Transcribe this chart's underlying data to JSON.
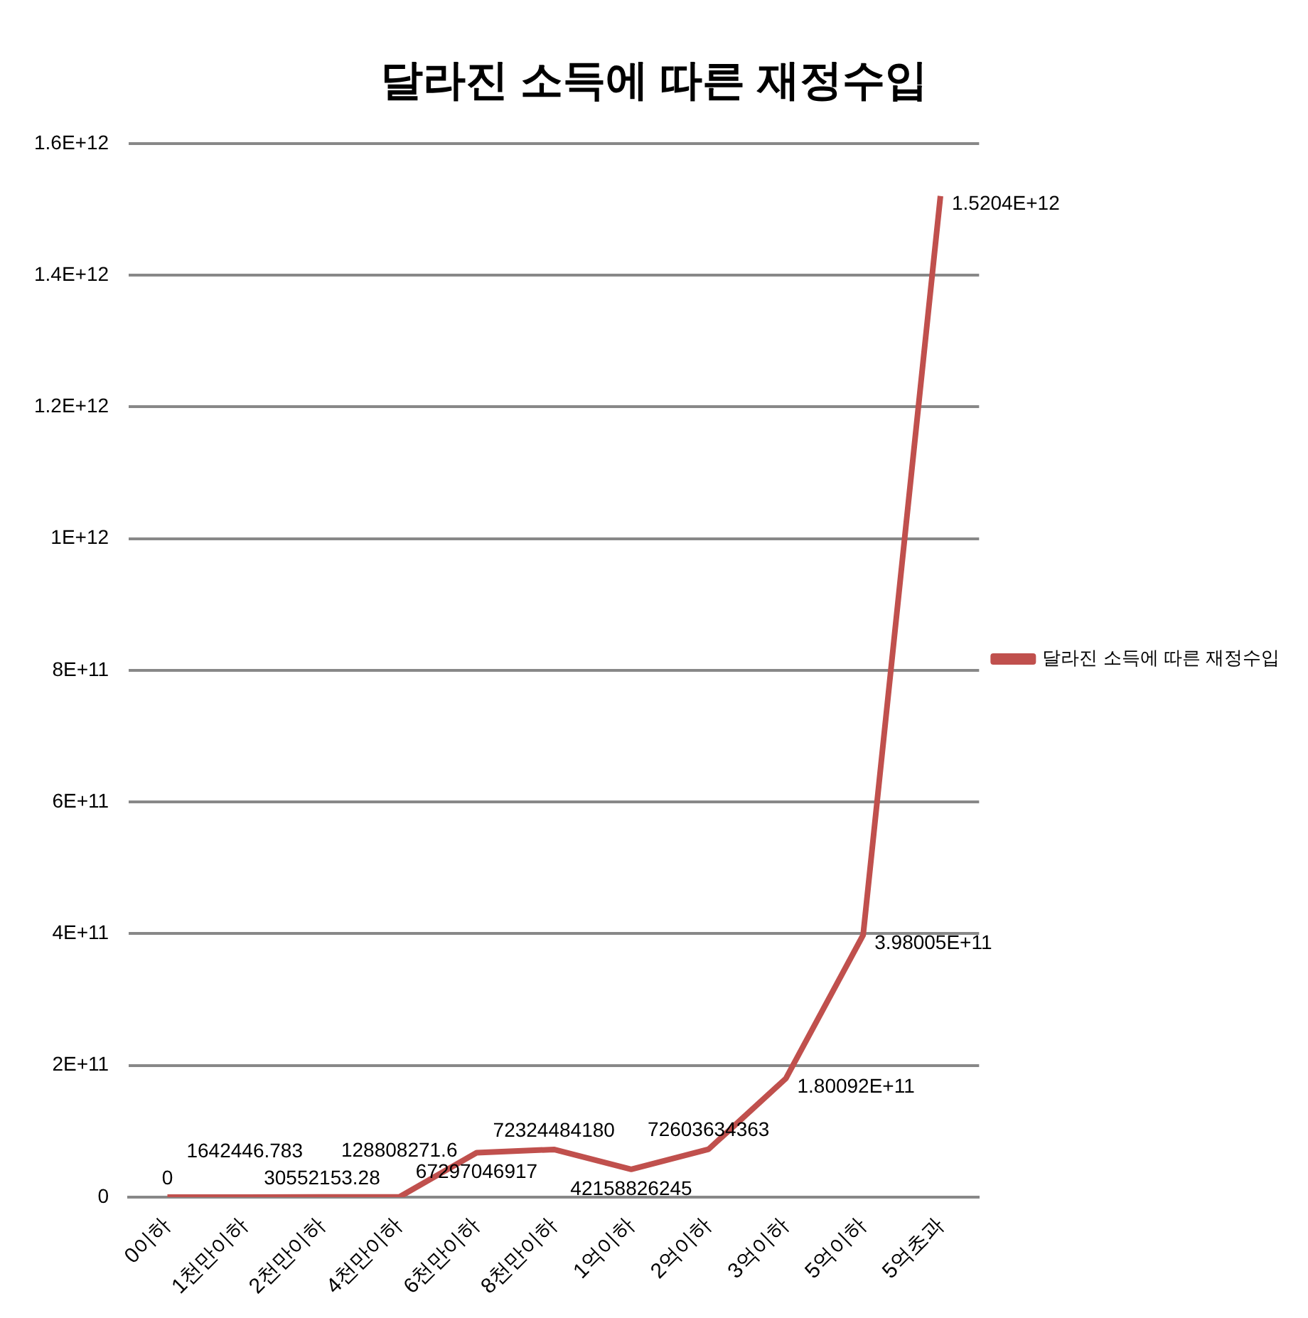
{
  "chart_data": {
    "type": "line",
    "title": "달라진 소득에 따른 재정수입",
    "categories": [
      "0이하",
      "1천만이하",
      "2천만이하",
      "4천만이하",
      "6천만이하",
      "8천만이하",
      "1억이하",
      "2억이하",
      "3억이하",
      "5억이하",
      "5억초과"
    ],
    "series": [
      {
        "name": "달라진 소득에 따른 재정수입",
        "color": "#c0504d",
        "values": [
          0,
          1642446.783,
          30552153.28,
          128808271.6,
          67297046917,
          72324484180,
          42158826245,
          72603634363,
          180092000000,
          398005000000,
          1520400000000
        ],
        "value_labels": [
          "0",
          "1642446.783",
          "30552153.28",
          "128808271.6",
          "67297046917",
          "72324484180",
          "42158826245",
          "72603634363",
          "1.80092E+11",
          "3.98005E+11",
          "1.5204E+12"
        ]
      }
    ],
    "ylim": [
      0,
      1600000000000
    ],
    "yticks": [
      0,
      {
        "value": 200000000000,
        "label": "2E+11"
      },
      {
        "value": 400000000000,
        "label": "4E+11"
      },
      {
        "value": 600000000000,
        "label": "6E+11"
      },
      {
        "value": 800000000000,
        "label": "8E+11"
      },
      {
        "value": 1000000000000,
        "label": "1E+12"
      },
      {
        "value": 1200000000000,
        "label": "1.2E+12"
      },
      {
        "value": 1400000000000,
        "label": "1.4E+12"
      },
      {
        "value": 1600000000000,
        "label": "1.6E+12"
      }
    ],
    "grid": "y",
    "legend": "right",
    "marker": "none",
    "line_style": "solid"
  }
}
